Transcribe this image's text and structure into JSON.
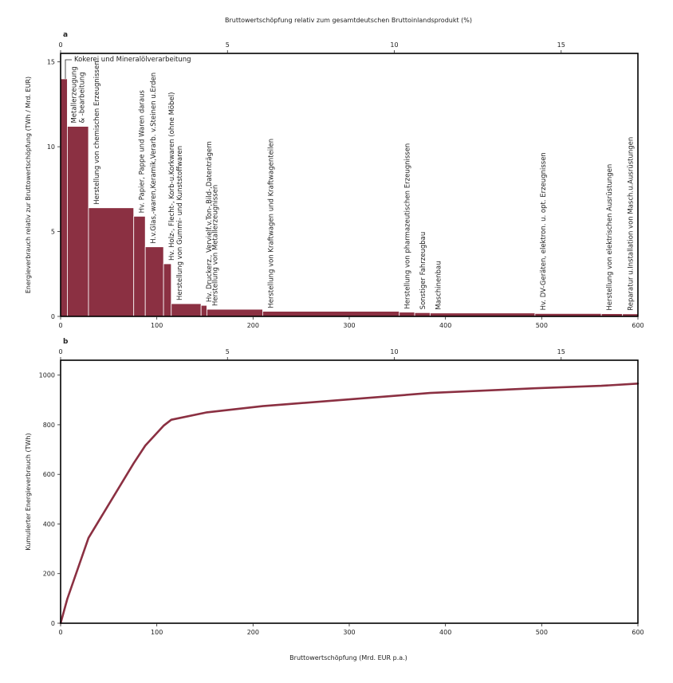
{
  "top_axis_title": "Bruttowertschöpfung relativ zum gesamtdeutschen Bruttoinlandsprodukt (%)",
  "bottom_axis_title": "Bruttowertschöpfung (Mrd. EUR p.a.)",
  "colors": {
    "bar": "#8b3042",
    "line": "#8b3042",
    "frame": "#000000"
  },
  "chart_data": [
    {
      "panel": "a",
      "type": "bar",
      "variable_width": true,
      "xlabel": "",
      "ylabel": "Energieverbrauch relativ zur Bruttowertschöpfung (TWh / Mrd. EUR)",
      "xlim": [
        0,
        600
      ],
      "ylim": [
        0,
        15.5
      ],
      "x_ticks": [
        0,
        100,
        200,
        300,
        400,
        500,
        600
      ],
      "y_ticks": [
        0,
        5,
        10,
        15
      ],
      "top_xlim": [
        0,
        17.3
      ],
      "top_ticks": [
        0,
        5,
        10,
        15
      ],
      "bars": [
        {
          "label": "Kokerei und Mineralölverarbeitung",
          "x0": 0,
          "x1": 7,
          "value": 14.0
        },
        {
          "label": "Metallerzeugung & -bearbeitung",
          "x0": 7,
          "x1": 29,
          "value": 11.2
        },
        {
          "label": "Herstellung von chemischen Erzeugnissen",
          "x0": 29,
          "x1": 76,
          "value": 6.4
        },
        {
          "label": "Hv. Papier, Pappe und Waren daraus",
          "x0": 76,
          "x1": 88,
          "value": 5.9
        },
        {
          "label": "H.v.Glas,-waren,Keramik,Verarb. v.Steinen u.Erden",
          "x0": 88,
          "x1": 107,
          "value": 4.1
        },
        {
          "label": "Hv. Holz-, Flecht-, Korb-u.Korkwaren (ohne Möbel)",
          "x0": 107,
          "x1": 115,
          "value": 3.1
        },
        {
          "label": "Herstellung von Gummi- und Kunststoffwaren",
          "x0": 115,
          "x1": 146,
          "value": 0.75
        },
        {
          "label": "Hv. Druckerz., Vervielf.v.Ton-,Bild-,Datenträgern",
          "x0": 146,
          "x1": 152,
          "value": 0.65
        },
        {
          "label": "Herstellung von Metallerzeugnissen",
          "x0": 152,
          "x1": 210,
          "value": 0.42
        },
        {
          "label": "Herstellung von Kraftwagen und Kraftwagenteilen",
          "x0": 210,
          "x1": 352,
          "value": 0.3
        },
        {
          "label": "Herstellung von pharmazeutischen Erzeugnissen",
          "x0": 352,
          "x1": 368,
          "value": 0.25
        },
        {
          "label": "Sonstiger Fahrzeugbau",
          "x0": 368,
          "x1": 384,
          "value": 0.22
        },
        {
          "label": "Maschinenbau",
          "x0": 384,
          "x1": 493,
          "value": 0.2
        },
        {
          "label": "Hv. DV-Geräten, elektron. u. opt. Erzeugnissen",
          "x0": 493,
          "x1": 562,
          "value": 0.17
        },
        {
          "label": "Herstellung von elektrischen Ausrüstungen",
          "x0": 562,
          "x1": 584,
          "value": 0.16
        },
        {
          "label": "Reparatur u.Installation von Masch.u.Ausrüstungen",
          "x0": 584,
          "x1": 600,
          "value": 0.15
        }
      ]
    },
    {
      "panel": "b",
      "type": "line",
      "xlabel": "Bruttowertschöpfung (Mrd. EUR p.a.)",
      "ylabel": "Kumulierter Energieverbrauch (TWh)",
      "xlim": [
        0,
        600
      ],
      "ylim": [
        0,
        1060
      ],
      "x_ticks": [
        0,
        100,
        200,
        300,
        400,
        500,
        600
      ],
      "y_ticks": [
        0,
        200,
        400,
        600,
        800,
        1000
      ],
      "top_xlim": [
        0,
        17.3
      ],
      "top_ticks": [
        0,
        5,
        10,
        15
      ],
      "x": [
        0,
        7,
        29,
        76,
        88,
        107,
        115,
        152,
        210,
        352,
        384,
        493,
        562,
        600
      ],
      "y": [
        0,
        98,
        344,
        645,
        716,
        796,
        820,
        850,
        875,
        918,
        928,
        947,
        957,
        966
      ]
    }
  ]
}
